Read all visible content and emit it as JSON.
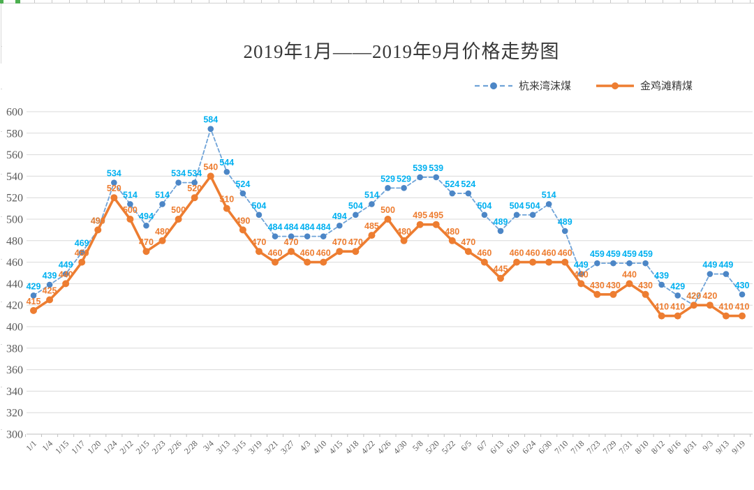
{
  "title": "2019年1月——2019年9月价格走势图",
  "legend": [
    {
      "label": "杭来湾沫煤",
      "color": "#6FA3D8",
      "marker_color": "#4C86C6",
      "style": "dashed"
    },
    {
      "label": "金鸡滩精煤",
      "color": "#ED7D31",
      "marker_color": "#ED7D31",
      "style": "solid"
    }
  ],
  "chart_data": {
    "type": "line",
    "title": "2019年1月——2019年9月价格走势图",
    "categories": [
      "1/1",
      "1/4",
      "1/15",
      "1/17",
      "1/20",
      "1/24",
      "2/12",
      "2/15",
      "2/23",
      "2/26",
      "2/28",
      "3/4",
      "3/13",
      "3/15",
      "3/19",
      "3/21",
      "3/27",
      "4/3",
      "4/10",
      "4/15",
      "4/18",
      "4/22",
      "4/26",
      "4/30",
      "5/8",
      "5/20",
      "5/22",
      "6/5",
      "6/7",
      "6/13",
      "6/19",
      "6/24",
      "6/30",
      "7/10",
      "7/18",
      "7/23",
      "7/29",
      "7/31",
      "8/10",
      "8/12",
      "8/16",
      "8/31",
      "9/3",
      "9/13",
      "9/19"
    ],
    "series": [
      {
        "name": "杭来湾沫煤",
        "line_style": "dashed",
        "color": "#6FA3D8",
        "marker_color": "#4C86C6",
        "label_color": "#00B0F0",
        "values": [
          429,
          439,
          449,
          469,
          490,
          534,
          514,
          494,
          514,
          534,
          534,
          584,
          544,
          524,
          504,
          484,
          484,
          484,
          484,
          494,
          504,
          514,
          529,
          529,
          539,
          539,
          524,
          524,
          504,
          489,
          504,
          504,
          514,
          489,
          449,
          459,
          459,
          459,
          459,
          439,
          429,
          420,
          449,
          449,
          430
        ]
      },
      {
        "name": "金鸡滩精煤",
        "line_style": "solid",
        "color": "#ED7D31",
        "marker_color": "#ED7D31",
        "label_color": "#ED7D31",
        "values": [
          415,
          425,
          440,
          460,
          490,
          520,
          500,
          470,
          480,
          500,
          520,
          540,
          510,
          490,
          470,
          460,
          470,
          460,
          460,
          470,
          470,
          485,
          500,
          480,
          495,
          495,
          480,
          470,
          460,
          445,
          460,
          460,
          460,
          460,
          440,
          430,
          430,
          440,
          430,
          410,
          410,
          420,
          420,
          410,
          410
        ]
      }
    ],
    "ylim": [
      300,
      600
    ],
    "yticks": [
      300,
      320,
      340,
      360,
      380,
      400,
      420,
      440,
      460,
      480,
      500,
      520,
      540,
      560,
      580,
      600
    ],
    "grid": true,
    "data_labels": true,
    "legend_position": "top-right",
    "xlabel": "",
    "ylabel": "",
    "theme": {
      "gridline": "#D9D9D9",
      "axis_line": "#BFBFBF",
      "axis_text": "#595959",
      "background": "#FFFFFF"
    }
  }
}
